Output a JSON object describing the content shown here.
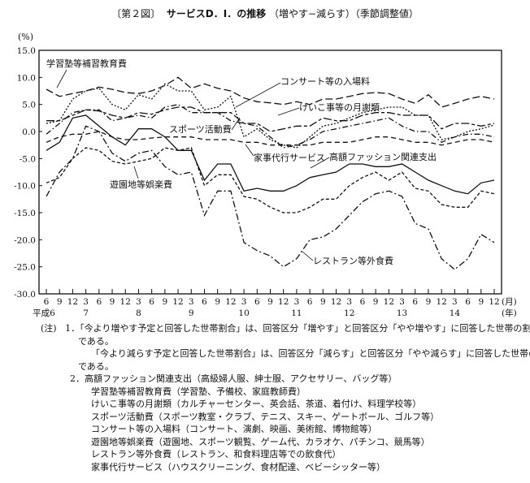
{
  "title_prefix": "〔第２図〕",
  "title_main": "サービスD．I．の推移",
  "title_suffix": "（増やす−減らす）（季節調整値）",
  "chart_data": {
    "type": "line",
    "title": "サービスD．I．の推移（増やす−減らす）（季節調整値）",
    "ylabel": "(%)",
    "ylim": [
      -30,
      15
    ],
    "yticks": [
      "15.0",
      "10.0",
      "5.0",
      "0.0",
      "-5.0",
      "-10.0",
      "-15.0",
      "-20.0",
      "-25.0",
      "-30.0"
    ],
    "ytick_values": [
      15,
      10,
      5,
      0,
      -5,
      -10,
      -15,
      -20,
      -25,
      -30
    ],
    "x_month_labels": [
      "6",
      "9",
      "12",
      "3",
      "6",
      "9",
      "12",
      "3",
      "6",
      "9",
      "12",
      "3",
      "6",
      "9",
      "12",
      "3",
      "6",
      "9",
      "12",
      "3",
      "6",
      "9",
      "12",
      "3",
      "6",
      "9",
      "12",
      "3",
      "6",
      "9",
      "12",
      "3",
      "6",
      "9",
      "12"
    ],
    "x_year_labels": [
      {
        "index": 0,
        "label": "平成6"
      },
      {
        "index": 3,
        "label": "7"
      },
      {
        "index": 7,
        "label": "8"
      },
      {
        "index": 11,
        "label": "9"
      },
      {
        "index": 15,
        "label": "10"
      },
      {
        "index": 19,
        "label": "11"
      },
      {
        "index": 23,
        "label": "12"
      },
      {
        "index": 27,
        "label": "13"
      },
      {
        "index": 31,
        "label": "14"
      }
    ],
    "x_unit_month": "(月)",
    "x_unit_year": "(年)",
    "grid": false,
    "series": [
      {
        "name": "学習塾等補習教育費",
        "style": "longdash",
        "values": [
          7.8,
          6.5,
          7,
          7.5,
          8.2,
          7.8,
          7.2,
          7,
          7.5,
          8.5,
          10,
          8,
          8.8,
          8,
          7.5,
          6.2,
          5.5,
          5.3,
          5,
          5.5,
          5,
          6,
          6,
          6.5,
          7,
          7.2,
          7,
          6,
          5.2,
          6.8,
          4.5,
          5.2,
          6,
          6.5,
          6
        ]
      },
      {
        "name": "コンサート等の入場料",
        "style": "dotted",
        "values": [
          1.5,
          2,
          6,
          7.5,
          8,
          5,
          4,
          6.8,
          6,
          8.8,
          7.5,
          7.5,
          4,
          4.5,
          6.5,
          -1,
          0.5,
          -1.5,
          -2.5,
          -3,
          -1,
          1,
          1.5,
          2.5,
          3.5,
          4,
          4.5,
          4.5,
          3,
          3,
          -1.5,
          -1,
          0,
          0.5,
          1.2
        ]
      },
      {
        "name": "けいこ事等の月謝類",
        "style": "longshort",
        "values": [
          2,
          2,
          3,
          4,
          3.8,
          3,
          2.5,
          3.5,
          3.2,
          4,
          4.5,
          4.5,
          3.5,
          3.5,
          3.5,
          1.5,
          1.5,
          0,
          0.5,
          1,
          1,
          2.5,
          2,
          2,
          3,
          3.5,
          3.5,
          3,
          3,
          3,
          0.5,
          1.5,
          1.5,
          1,
          1.5
        ]
      },
      {
        "name": "スポーツ活動費",
        "style": "dashdot",
        "values": [
          -0.5,
          1.5,
          3.5,
          4,
          4,
          2,
          2.5,
          3,
          2.5,
          4.5,
          5,
          3.5,
          3.5,
          3.5,
          2,
          1.5,
          1,
          -1,
          -3,
          -2.5,
          -1.5,
          0,
          0.5,
          1,
          1.5,
          2,
          2.5,
          1,
          0,
          0,
          -2,
          -1,
          -0.5,
          -0.5,
          -1
        ]
      },
      {
        "name": "家事代行サービス",
        "style": "dashed",
        "values": [
          -2,
          -1,
          -0.5,
          -0.5,
          0,
          -1,
          -1.5,
          -1.5,
          -1.2,
          -1,
          -1,
          -1,
          -1.5,
          -1.5,
          -1.5,
          -2,
          -2,
          -2.5,
          -2.5,
          -2.5,
          -2.5,
          -2,
          -2,
          -2,
          -1.5,
          -1,
          -1,
          -1.5,
          -2,
          -2,
          -2.5,
          -2,
          -1.5,
          -1.5,
          -2
        ]
      },
      {
        "name": "高額ファッション関連支出",
        "style": "solid",
        "values": [
          -3.5,
          -2,
          2.5,
          3,
          1,
          -1,
          -2.5,
          0.5,
          0.5,
          -1,
          -3.5,
          -3.5,
          -9,
          -6,
          -6,
          -11,
          -10.5,
          -11,
          -11,
          -10,
          -8.5,
          -8,
          -7.5,
          -6,
          -6,
          -6.5,
          -6.5,
          -6,
          -7.5,
          -9,
          -10,
          -11,
          -11.5,
          -9.5,
          -9
        ]
      },
      {
        "name": "遊園地等娯楽費",
        "style": "shortdash",
        "values": [
          -9.5,
          -8.5,
          -5,
          -3,
          -3.5,
          -5.5,
          -6,
          -5.5,
          -5,
          -3,
          -3.5,
          -3,
          -10,
          -8,
          -8,
          -12,
          -12.5,
          -14,
          -15,
          -15,
          -14,
          -12.5,
          -12.5,
          -10,
          -8.5,
          -7.5,
          -9,
          -7.5,
          -10.5,
          -11,
          -13.5,
          -14,
          -14,
          -11,
          -11.5
        ]
      },
      {
        "name": "レストラン等外食費",
        "style": "dashdot2",
        "values": [
          -12,
          -7.5,
          -5,
          1,
          0,
          -4,
          -5.5,
          -4,
          -3.5,
          -6.5,
          -8,
          -7.5,
          -15.5,
          -11,
          -11,
          -20.5,
          -22,
          -23,
          -25,
          -23.5,
          -20,
          -19.5,
          -18,
          -15.5,
          -13,
          -11.5,
          -11,
          -12,
          -17,
          -18,
          -23.5,
          -25.5,
          -23.5,
          -19,
          -20.5
        ]
      }
    ]
  },
  "notes": {
    "label": "(注)",
    "item1_num": "1．",
    "item1_line1": "「今より増やす予定と回答した世帯割合」は、回答区分「増やす」と回答区分「やや増やす」に回答した世帯の割合",
    "item1_line2": "である。",
    "item1_line3": "「今より減らす予定と回答した世帯割合」は、回答区分「減らす」と回答区分「やや減らす」に回答した世帯の割合",
    "item1_line4": "である。",
    "item2_num": "2．",
    "item2_lines": [
      "高額ファッション関連支出（高級婦人服、紳士服、アクセサリー、バッグ等）",
      "学習塾等補習教育費（学習塾、予備校、家庭教師費）",
      "けいこ事等の月謝類（カルチャーセンター、英会話、茶道、着付け、料理学校等）",
      "スポーツ活動費（スポーツ教室・クラブ、テニス、スキー、ゲートボール、ゴルフ等）",
      "コンサート等の入場料（コンサート、演劇、映画、美術館、博物館等）",
      "遊園地等娯楽費（遊園地、スポーツ観覧、ゲーム代、カラオケ、パチンコ、競馬等）",
      "レストラン等外食費（レストラン、和食料理店等での飲食代）",
      "家事代行サービス（ハウスクリーニング、食材配達、ベビーシッター等）"
    ]
  }
}
